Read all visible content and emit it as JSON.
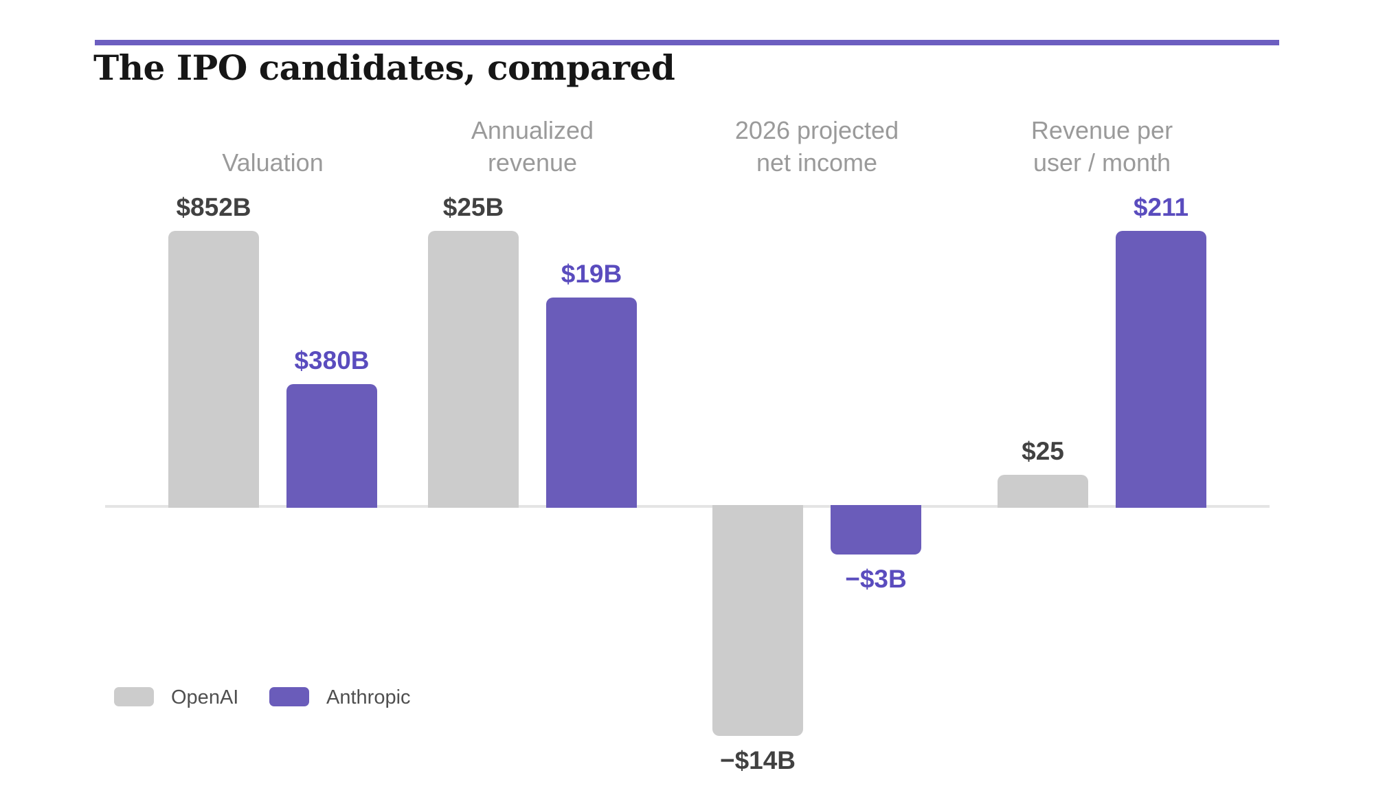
{
  "title": "The IPO candidates, compared",
  "colors": {
    "top_rule": "#6c5ec0",
    "baseline": "#e4e4e4",
    "title_text": "#161616",
    "category_label": "#9a9a9a",
    "openai_bar": "#cccccc",
    "anthropic_bar": "#6a5cba",
    "openai_value_label": "#414141",
    "anthropic_value_label": "#5a4cbe",
    "legend_text": "#4f4f4f",
    "background": "#ffffff"
  },
  "legend": {
    "items": [
      {
        "name": "OpenAI",
        "color": "#cccccc"
      },
      {
        "name": "Anthropic",
        "color": "#6a5cba"
      }
    ]
  },
  "chart_data": {
    "type": "bar",
    "title": "The IPO candidates, compared",
    "categories": [
      "Valuation",
      "Annualized revenue",
      "2026 projected net income",
      "Revenue per user / month"
    ],
    "category_label_lines": [
      [
        "Valuation"
      ],
      [
        "Annualized",
        "revenue"
      ],
      [
        "2026 projected",
        "net income"
      ],
      [
        "Revenue per",
        "user / month"
      ]
    ],
    "series": [
      {
        "name": "OpenAI",
        "color": "#cccccc",
        "label_color": "#414141",
        "values": [
          852,
          25,
          -14,
          25
        ],
        "value_labels": [
          "$852B",
          "$25B",
          "−$14B",
          "$25"
        ]
      },
      {
        "name": "Anthropic",
        "color": "#6a5cba",
        "label_color": "#5a4cbe",
        "values": [
          380,
          19,
          -3,
          211
        ],
        "value_labels": [
          "$380B",
          "$19B",
          "−$3B",
          "$211"
        ]
      }
    ],
    "baseline_value": 0,
    "grid": false,
    "axes_shown": false,
    "normalization": "each category pair is scaled independently; the larger absolute value in each pair gets the full bar length",
    "legend_position": "bottom-left"
  }
}
